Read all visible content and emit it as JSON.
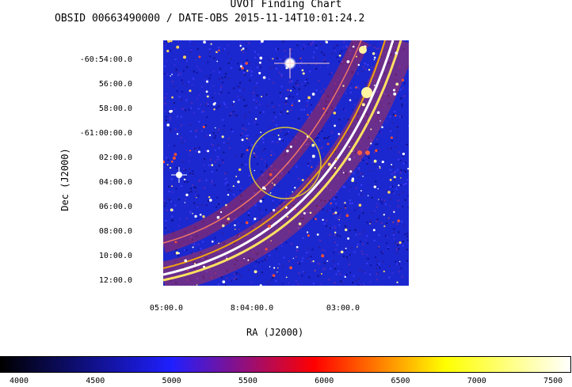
{
  "header": {
    "title": "UVOT Finding Chart",
    "subtitle": "OBSID 00663490000 / DATE-OBS 2015-11-14T10:01:24.2"
  },
  "axes": {
    "xlabel": "RA (J2000)",
    "ylabel": "Dec (J2000)",
    "dec_ticks": [
      "-60:54:00.0",
      "56:00.0",
      "58:00.0",
      "-61:00:00.0",
      "02:00.0",
      "04:00.0",
      "06:00.0",
      "08:00.0",
      "10:00.0",
      "12:00.0"
    ],
    "ra_ticks": [
      "05:00.0",
      "8:04:00.0",
      "03:00.0"
    ]
  },
  "colorbar": {
    "ticks": [
      "4000",
      "4500",
      "5000",
      "5500",
      "6000",
      "6500",
      "7000",
      "7500"
    ],
    "colors": [
      "#000000",
      "#1f1fff",
      "#ff0000",
      "#ffff00",
      "#ffffff"
    ]
  },
  "overlay": {
    "circle_color": "#d8c23a"
  }
}
